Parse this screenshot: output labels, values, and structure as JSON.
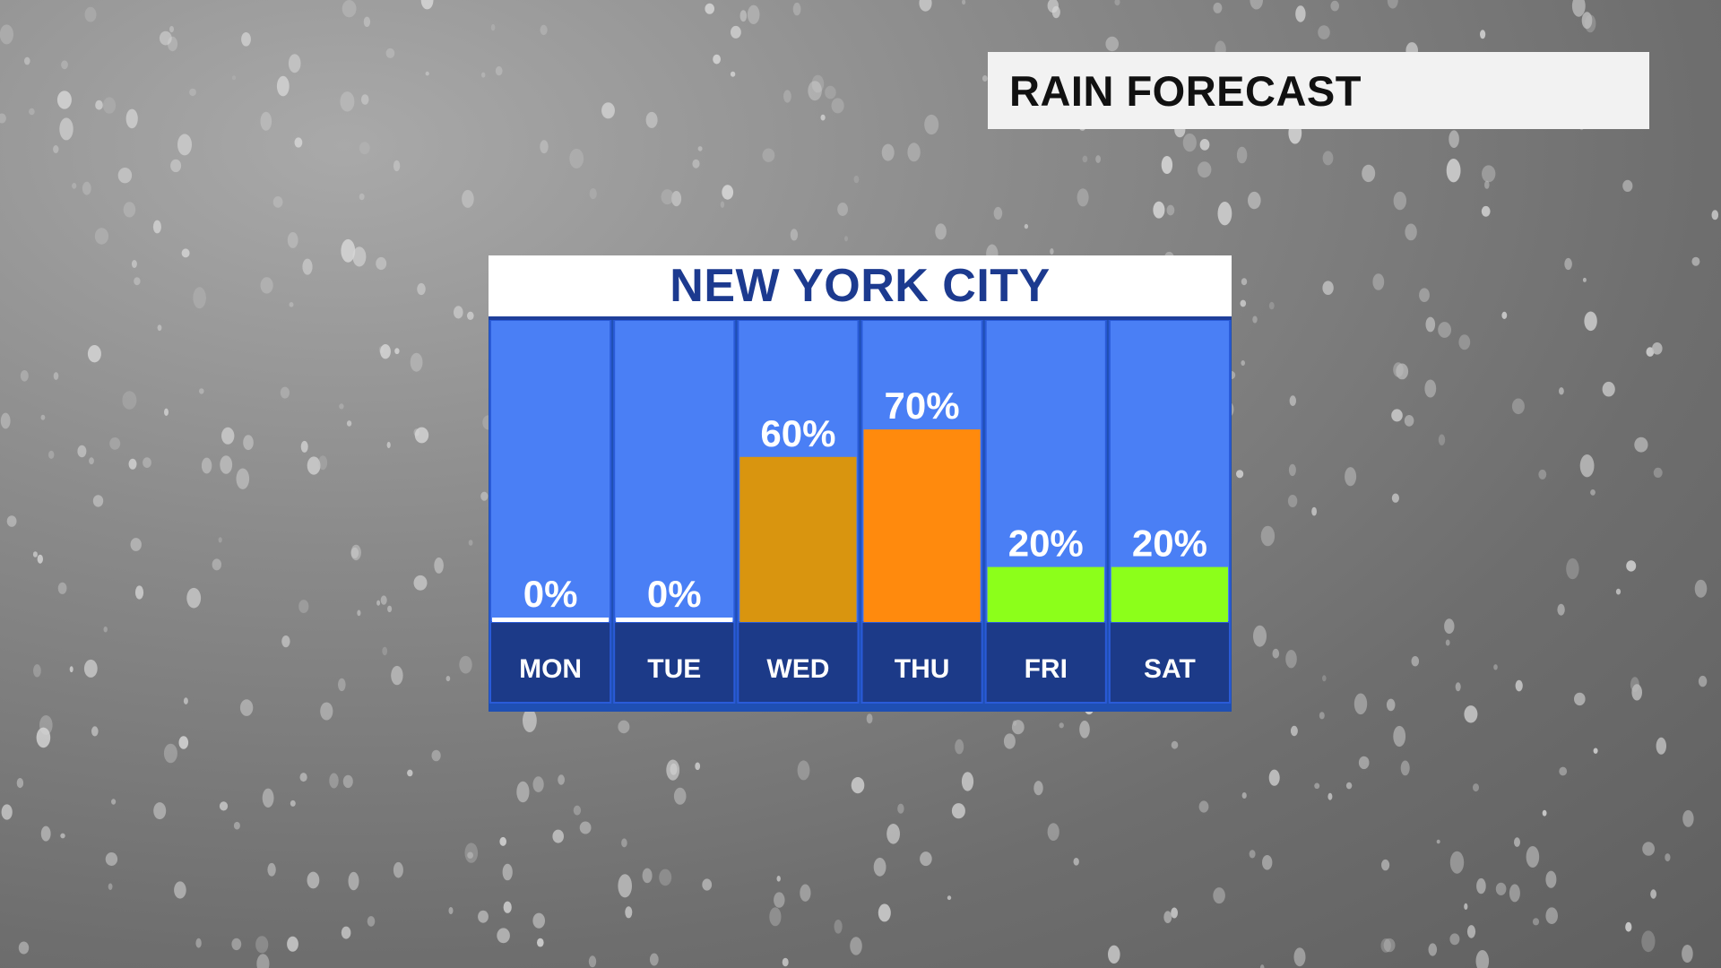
{
  "title": "RAIN FORECAST",
  "colors": {
    "column_bg": "#4a7ff5",
    "day_label_bg": "#1c3a88",
    "border": "#2a5bd8",
    "bar_60": "#d9950f",
    "bar_70": "#ff8a0d",
    "bar_20": "#8cff1a",
    "bar_0": "#ffffff"
  },
  "chart_data": {
    "type": "bar",
    "title": "NEW YORK CITY",
    "categories": [
      "MON",
      "TUE",
      "WED",
      "THU",
      "FRI",
      "SAT"
    ],
    "values": [
      0,
      0,
      60,
      70,
      20,
      20
    ],
    "data_labels": [
      "0%",
      "0%",
      "60%",
      "70%",
      "20%",
      "20%"
    ],
    "bar_colors": [
      "#ffffff",
      "#ffffff",
      "#d9950f",
      "#ff8a0d",
      "#8cff1a",
      "#8cff1a"
    ],
    "ylim": [
      0,
      100
    ],
    "grid": false,
    "legend": "none"
  }
}
